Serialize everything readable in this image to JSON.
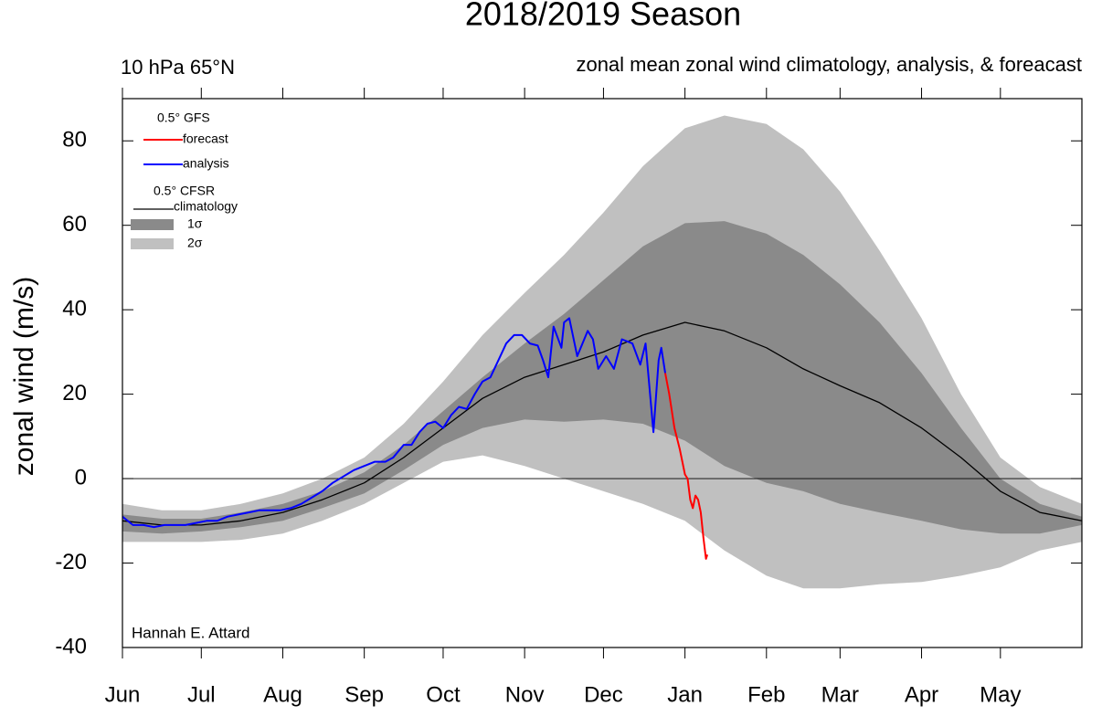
{
  "chart_data": {
    "type": "line",
    "title": "2018/2019 Season",
    "subtitle_left": "10 hPa 65°N",
    "subtitle_right": "zonal mean zonal wind climatology, analysis, & foreacast",
    "ylabel": "zonal wind (m/s)",
    "credit": "Hannah E. Attard",
    "legend_groups": [
      "0.5° GFS",
      "0.5° CFSR"
    ],
    "xlim": [
      0,
      365
    ],
    "xticks": [
      {
        "value": 0,
        "label": "Jun"
      },
      {
        "value": 30,
        "label": "Jul"
      },
      {
        "value": 61,
        "label": "Aug"
      },
      {
        "value": 92,
        "label": "Sep"
      },
      {
        "value": 122,
        "label": "Oct"
      },
      {
        "value": 153,
        "label": "Nov"
      },
      {
        "value": 183,
        "label": "Dec"
      },
      {
        "value": 214,
        "label": "Jan"
      },
      {
        "value": 245,
        "label": "Feb"
      },
      {
        "value": 273,
        "label": "Mar"
      },
      {
        "value": 304,
        "label": "Apr"
      },
      {
        "value": 334,
        "label": "May"
      }
    ],
    "ylim": [
      -40,
      90
    ],
    "yticks": [
      -40,
      -20,
      0,
      20,
      40,
      60,
      80
    ],
    "hline": 0,
    "x": [
      0,
      15,
      30,
      45,
      61,
      76,
      92,
      107,
      122,
      137,
      153,
      168,
      183,
      198,
      214,
      229,
      245,
      259,
      273,
      288,
      304,
      319,
      334,
      349,
      365
    ],
    "bands": [
      {
        "name": "2σ",
        "color": "#c0c0c0",
        "upper": [
          -6,
          -7.5,
          -7.5,
          -6,
          -3.5,
          0,
          5,
          13,
          23,
          34,
          44,
          53,
          63,
          74,
          83,
          86,
          84,
          78,
          68,
          54,
          38,
          20,
          5,
          -2,
          -6
        ],
        "lower": [
          -15,
          -15,
          -15,
          -14.5,
          -13,
          -10,
          -6,
          -1,
          4,
          5.5,
          3,
          0,
          -3,
          -6,
          -10,
          -17,
          -23,
          -26,
          -26,
          -25,
          -24.5,
          -23,
          -21,
          -17,
          -15
        ]
      },
      {
        "name": "1σ",
        "color": "#8a8a8a",
        "upper": [
          -8.5,
          -9.5,
          -9.5,
          -8,
          -6,
          -3,
          1.5,
          8,
          16,
          24,
          32,
          39,
          47,
          55,
          60.5,
          61,
          58,
          53,
          46,
          37,
          25,
          12,
          0,
          -6,
          -9
        ],
        "lower": [
          -12.5,
          -13,
          -12.5,
          -11.5,
          -10,
          -7,
          -3.5,
          2,
          8,
          12,
          14,
          13.5,
          14,
          13,
          9,
          3,
          -1,
          -3,
          -6,
          -8,
          -10,
          -12,
          -13,
          -13,
          -11
        ]
      }
    ],
    "series": [
      {
        "name": "climatology",
        "color": "#000000",
        "x": [
          0,
          15,
          30,
          45,
          61,
          76,
          92,
          107,
          122,
          137,
          153,
          168,
          183,
          198,
          214,
          229,
          245,
          259,
          273,
          288,
          304,
          319,
          334,
          349,
          365
        ],
        "values": [
          -10,
          -11,
          -11,
          -10,
          -8,
          -5,
          -1,
          5,
          12,
          19,
          24,
          27,
          30,
          34,
          37,
          35,
          31,
          26,
          22,
          18,
          12,
          5,
          -3,
          -8,
          -10
        ]
      },
      {
        "name": "analysis",
        "color": "#0000ff",
        "x": [
          0,
          4,
          8,
          12,
          16,
          20,
          24,
          28,
          32,
          36,
          40,
          44,
          48,
          52,
          56,
          60,
          64,
          68,
          72,
          76,
          80,
          84,
          88,
          92,
          96,
          100,
          103,
          107,
          110,
          113,
          116,
          119,
          122,
          125,
          128,
          131,
          134,
          137,
          140,
          143,
          146,
          149,
          152,
          155,
          158,
          160,
          162,
          164,
          167,
          168,
          170,
          173,
          177,
          179,
          181,
          184,
          187,
          190,
          194,
          197,
          199,
          202,
          204,
          205,
          206.5
        ],
        "values": [
          -9,
          -11,
          -11,
          -11.5,
          -11,
          -11,
          -11,
          -10.5,
          -10,
          -10,
          -9,
          -8.5,
          -8,
          -7.5,
          -7.5,
          -7.5,
          -7,
          -6,
          -4.5,
          -3,
          -1,
          0.5,
          2,
          3,
          4,
          4,
          5,
          8,
          8,
          11,
          13,
          13.5,
          12,
          15,
          17,
          16.5,
          20,
          23,
          24,
          28,
          32,
          34,
          34,
          32,
          31.5,
          28,
          24,
          36,
          31,
          37,
          38,
          29,
          35,
          33,
          26,
          29,
          26,
          33,
          32,
          27,
          32,
          11,
          28,
          31,
          25
        ]
      },
      {
        "name": "forecast",
        "color": "#ff0000",
        "x": [
          206.5,
          208,
          210,
          212,
          214,
          215,
          216,
          217,
          218,
          219,
          220,
          221,
          222,
          222.5
        ],
        "values": [
          25,
          20,
          12,
          7,
          1,
          0,
          -5,
          -7,
          -4,
          -5,
          -8,
          -14,
          -19,
          -18
        ]
      }
    ]
  }
}
